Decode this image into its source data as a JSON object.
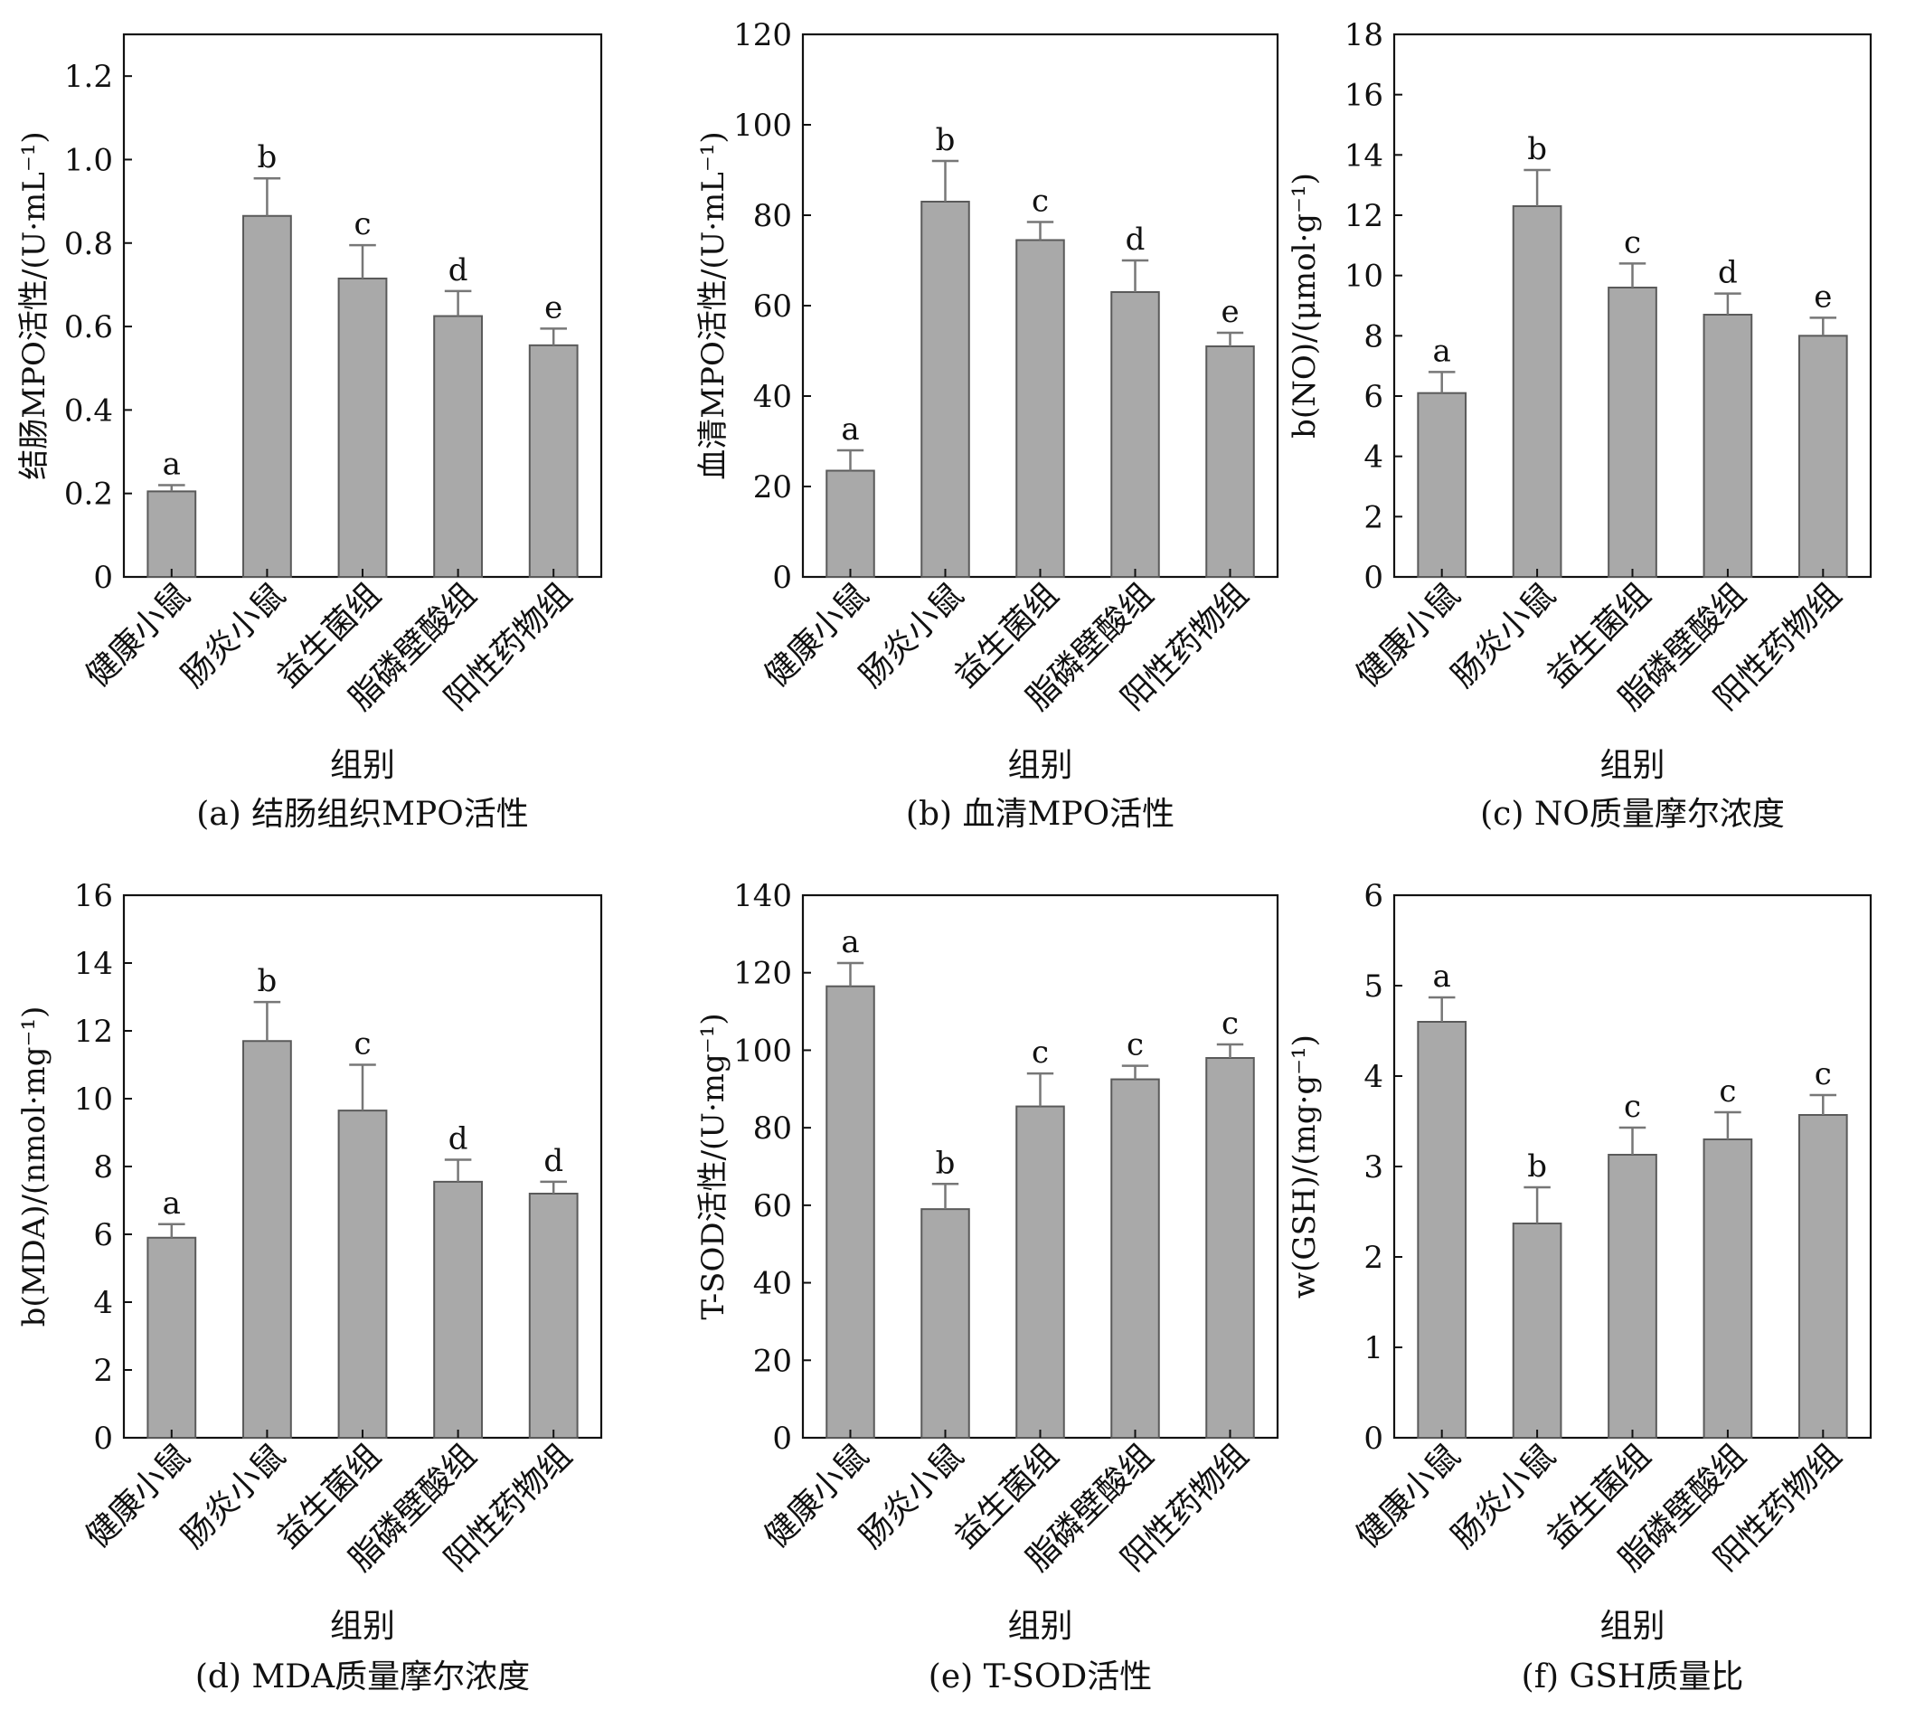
{
  "charts": [
    {
      "id": "a",
      "caption": "(a) 结肠组织MPO活性",
      "chart_data": {
        "type": "bar",
        "ylabel": "结肠MPO活性/(U·mL⁻¹)",
        "xlabel": "组别",
        "ylim": [
          0,
          1.3
        ],
        "yticks": [
          "0",
          "0.2",
          "0.4",
          "0.6",
          "0.8",
          "1.0",
          "1.2"
        ],
        "ytick_values": [
          0,
          0.2,
          0.4,
          0.6,
          0.8,
          1.0,
          1.2
        ],
        "categories": [
          "健康小鼠",
          "肠炎小鼠",
          "益生菌组",
          "脂磷壁酸组",
          "阳性药物组"
        ],
        "values": [
          0.205,
          0.865,
          0.715,
          0.625,
          0.555
        ],
        "errors": [
          0.015,
          0.09,
          0.08,
          0.06,
          0.04
        ],
        "letters": [
          "a",
          "b",
          "c",
          "d",
          "e"
        ]
      }
    },
    {
      "id": "b",
      "caption": "(b) 血清MPO活性",
      "chart_data": {
        "type": "bar",
        "ylabel": "血清MPO活性/(U·mL⁻¹)",
        "xlabel": "组别",
        "ylim": [
          0,
          120
        ],
        "yticks": [
          "0",
          "20",
          "40",
          "60",
          "80",
          "100",
          "120"
        ],
        "ytick_values": [
          0,
          20,
          40,
          60,
          80,
          100,
          120
        ],
        "categories": [
          "健康小鼠",
          "肠炎小鼠",
          "益生菌组",
          "脂磷壁酸组",
          "阳性药物组"
        ],
        "values": [
          23.5,
          83,
          74.5,
          63,
          51
        ],
        "errors": [
          4.5,
          9,
          4,
          7,
          3
        ],
        "letters": [
          "a",
          "b",
          "c",
          "d",
          "e"
        ]
      }
    },
    {
      "id": "c",
      "caption": "(c) NO质量摩尔浓度",
      "chart_data": {
        "type": "bar",
        "ylabel": "b(NO)/(μmol·g⁻¹)",
        "xlabel": "组别",
        "ylim": [
          0,
          18
        ],
        "yticks": [
          "0",
          "2",
          "4",
          "6",
          "8",
          "10",
          "12",
          "14",
          "16",
          "18"
        ],
        "ytick_values": [
          0,
          2,
          4,
          6,
          8,
          10,
          12,
          14,
          16,
          18
        ],
        "categories": [
          "健康小鼠",
          "肠炎小鼠",
          "益生菌组",
          "脂磷壁酸组",
          "阳性药物组"
        ],
        "values": [
          6.1,
          12.3,
          9.6,
          8.7,
          8.0
        ],
        "errors": [
          0.7,
          1.2,
          0.8,
          0.7,
          0.6
        ],
        "letters": [
          "a",
          "b",
          "c",
          "d",
          "e"
        ]
      }
    },
    {
      "id": "d",
      "caption": "(d) MDA质量摩尔浓度",
      "chart_data": {
        "type": "bar",
        "ylabel": "b(MDA)/(nmol·mg⁻¹)",
        "xlabel": "组别",
        "ylim": [
          0,
          16
        ],
        "yticks": [
          "0",
          "2",
          "4",
          "6",
          "8",
          "10",
          "12",
          "14",
          "16"
        ],
        "ytick_values": [
          0,
          2,
          4,
          6,
          8,
          10,
          12,
          14,
          16
        ],
        "categories": [
          "健康小鼠",
          "肠炎小鼠",
          "益生菌组",
          "脂磷壁酸组",
          "阳性药物组"
        ],
        "values": [
          5.9,
          11.7,
          9.65,
          7.55,
          7.2
        ],
        "errors": [
          0.4,
          1.15,
          1.35,
          0.65,
          0.35
        ],
        "letters": [
          "a",
          "b",
          "c",
          "d",
          "d"
        ]
      }
    },
    {
      "id": "e",
      "caption": "(e) T-SOD活性",
      "chart_data": {
        "type": "bar",
        "ylabel": "T-SOD活性/(U·mg⁻¹)",
        "xlabel": "组别",
        "ylim": [
          0,
          140
        ],
        "yticks": [
          "0",
          "20",
          "40",
          "60",
          "80",
          "100",
          "120",
          "140"
        ],
        "ytick_values": [
          0,
          20,
          40,
          60,
          80,
          100,
          120,
          140
        ],
        "categories": [
          "健康小鼠",
          "肠炎小鼠",
          "益生菌组",
          "脂磷壁酸组",
          "阳性药物组"
        ],
        "values": [
          116.5,
          59,
          85.5,
          92.5,
          98
        ],
        "errors": [
          6,
          6.5,
          8.5,
          3.5,
          3.5
        ],
        "letters": [
          "a",
          "b",
          "c",
          "c",
          "c"
        ]
      }
    },
    {
      "id": "f",
      "caption": "(f) GSH质量比",
      "chart_data": {
        "type": "bar",
        "ylabel": "w(GSH)/(mg·g⁻¹)",
        "xlabel": "组别",
        "ylim": [
          0,
          6
        ],
        "yticks": [
          "0",
          "1",
          "2",
          "3",
          "4",
          "5",
          "6"
        ],
        "ytick_values": [
          0,
          1,
          2,
          3,
          4,
          5,
          6
        ],
        "categories": [
          "健康小鼠",
          "肠炎小鼠",
          "益生菌组",
          "脂磷壁酸组",
          "阳性药物组"
        ],
        "values": [
          4.6,
          2.37,
          3.13,
          3.3,
          3.57
        ],
        "errors": [
          0.27,
          0.4,
          0.3,
          0.3,
          0.22
        ],
        "letters": [
          "a",
          "b",
          "c",
          "c",
          "c"
        ]
      }
    }
  ],
  "style": {
    "bar_fill": "#a9a9a9",
    "bar_stroke": "#5a5a5a",
    "axis_color": "#111111",
    "error_color": "#777777"
  }
}
